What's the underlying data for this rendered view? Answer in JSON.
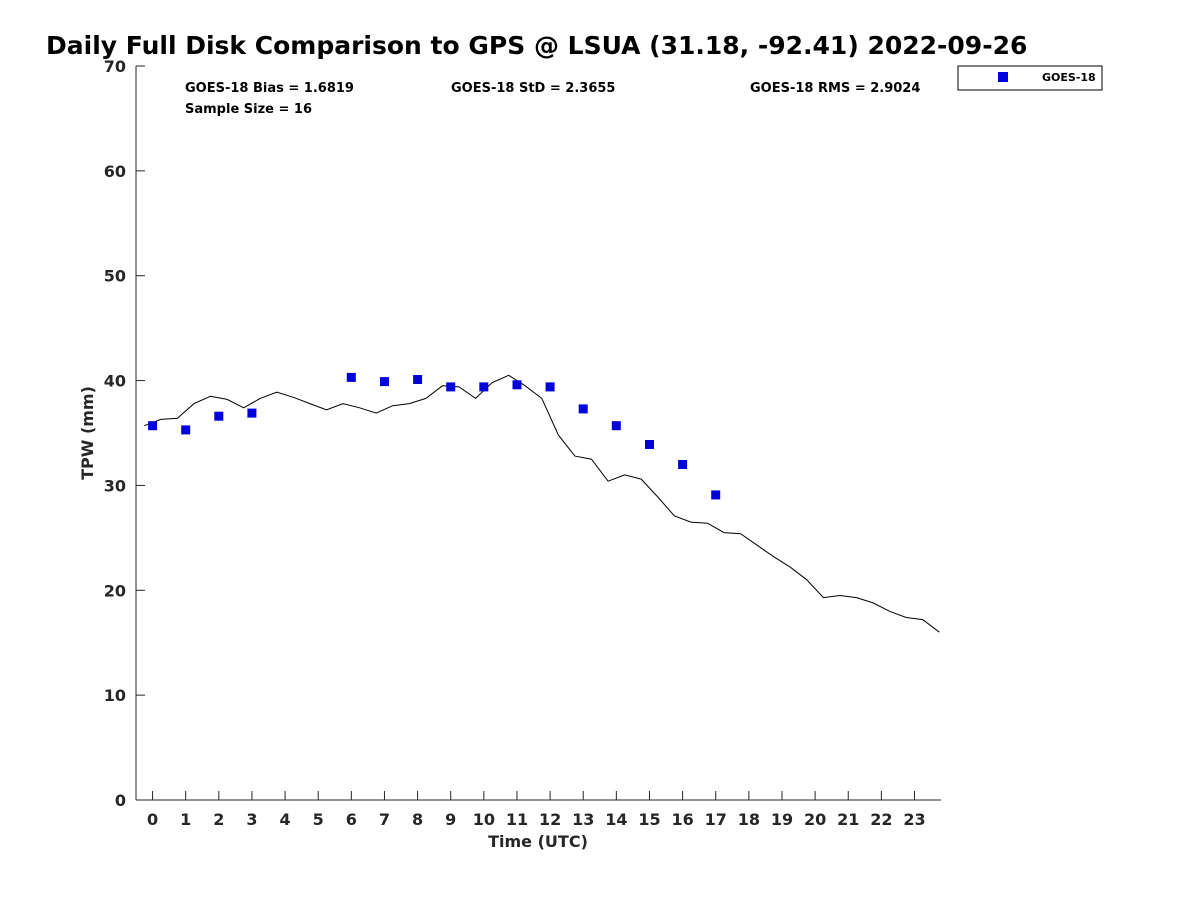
{
  "chart_data": {
    "type": "scatter",
    "title": "Daily Full Disk Comparison to GPS @ LSUA (31.18, -92.41) 2022-09-26",
    "xlabel": "Time (UTC)",
    "ylabel": "TPW (mm)",
    "xlim": [
      -0.5,
      23.8
    ],
    "ylim": [
      0,
      70
    ],
    "xticks": [
      0,
      1,
      2,
      3,
      4,
      5,
      6,
      7,
      8,
      9,
      10,
      11,
      12,
      13,
      14,
      15,
      16,
      17,
      18,
      19,
      20,
      21,
      22,
      23
    ],
    "yticks": [
      0,
      10,
      20,
      30,
      40,
      50,
      60,
      70
    ],
    "grid": false,
    "legend_position": "top-right",
    "stats": {
      "bias": "GOES-18 Bias = 1.6819",
      "std": "GOES-18 StD = 2.3655",
      "rms": "GOES-18 RMS = 2.9024",
      "sample_size": "Sample Size = 16"
    },
    "series": [
      {
        "name": "GOES-18",
        "kind": "points",
        "color": "#0000dd",
        "x": [
          0,
          1,
          2,
          3,
          6,
          7,
          8,
          9,
          10,
          11,
          12,
          13,
          14,
          15,
          16,
          17
        ],
        "y": [
          35.7,
          35.3,
          36.6,
          36.9,
          40.3,
          39.9,
          40.1,
          39.4,
          39.4,
          39.6,
          39.4,
          37.3,
          35.7,
          33.9,
          32.0,
          29.1
        ]
      },
      {
        "kind": "line",
        "color": "#000000",
        "x": [
          -0.25,
          0.25,
          0.75,
          1.25,
          1.75,
          2.25,
          2.75,
          3.25,
          3.75,
          4.25,
          4.75,
          5.25,
          5.75,
          6.25,
          6.75,
          7.25,
          7.75,
          8.25,
          8.75,
          9.25,
          9.75,
          10.25,
          10.75,
          11.25,
          11.75,
          12.25,
          12.75,
          13.25,
          13.75,
          14.25,
          14.75,
          15.25,
          15.75,
          16.25,
          16.75,
          17.25,
          17.75,
          18.25,
          18.75,
          19.25,
          19.75,
          20.25,
          20.75,
          21.25,
          21.75,
          22.25,
          22.75,
          23.25,
          23.75
        ],
        "y": [
          35.7,
          36.3,
          36.4,
          37.8,
          38.5,
          38.2,
          37.4,
          38.3,
          38.9,
          38.4,
          37.8,
          37.2,
          37.8,
          37.4,
          36.9,
          37.6,
          37.8,
          38.3,
          39.5,
          39.4,
          38.3,
          39.8,
          40.5,
          39.5,
          38.3,
          34.8,
          32.8,
          32.5,
          30.4,
          31.0,
          30.6,
          28.9,
          27.1,
          26.5,
          26.4,
          25.5,
          25.4,
          24.3,
          23.2,
          22.2,
          21.0,
          19.3,
          19.5,
          19.3,
          18.8,
          18.0,
          17.4,
          17.2,
          16.0
        ]
      }
    ]
  }
}
